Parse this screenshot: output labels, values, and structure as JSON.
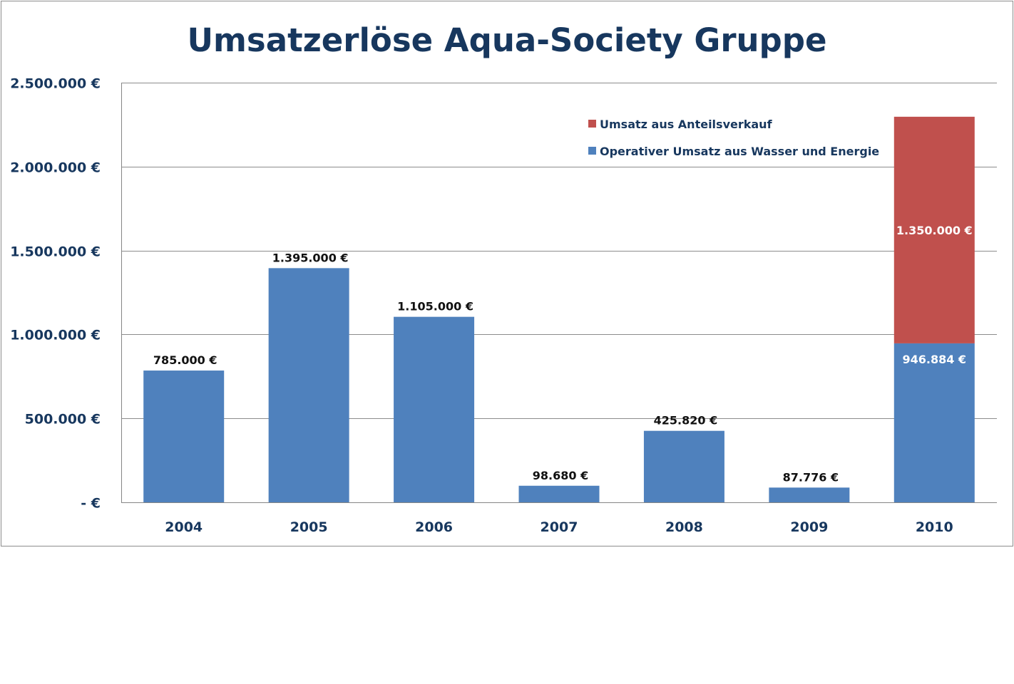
{
  "chart_data": {
    "type": "bar",
    "stacked": true,
    "title": "Umsatzerlöse Aqua-Society Gruppe",
    "xlabel": "",
    "ylabel": "",
    "ylim": [
      0,
      2500000
    ],
    "grid": true,
    "legend_position": "top-right",
    "categories": [
      "2004",
      "2005",
      "2006",
      "2007",
      "2008",
      "2009",
      "2010"
    ],
    "y_tick_values": [
      0,
      500000,
      1000000,
      1500000,
      2000000,
      2500000
    ],
    "y_tick_labels": [
      "-   €",
      "500.000 €",
      "1.000.000 €",
      "1.500.000 €",
      "2.000.000 €",
      "2.500.000 €"
    ],
    "series": [
      {
        "name": "Operativer Umsatz aus Wasser und Energie",
        "color": "#4F81BD",
        "values": [
          785000,
          1395000,
          1105000,
          98680,
          425820,
          87776,
          946884
        ],
        "labels": [
          "785.000 €",
          "1.395.000 €",
          "1.105.000 €",
          "98.680 €",
          "425.820 €",
          "87.776 €",
          "946.884 €"
        ]
      },
      {
        "name": "Umsatz aus Anteilsverkauf",
        "color": "#C0504D",
        "values": [
          0,
          0,
          0,
          0,
          0,
          0,
          1350000
        ],
        "labels": [
          "",
          "",
          "",
          "",
          "",
          "",
          "1.350.000 €"
        ]
      }
    ]
  }
}
